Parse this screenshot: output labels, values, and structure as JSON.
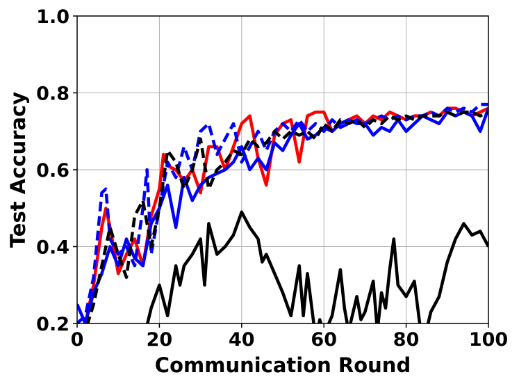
{
  "chart_data": {
    "type": "line",
    "xlabel": "Communication Round",
    "ylabel": "Test Accuracy",
    "xlim": [
      0,
      100
    ],
    "ylim": [
      0.2,
      1.0
    ],
    "x_ticks": [
      "0",
      "20",
      "40",
      "60",
      "80",
      "100"
    ],
    "y_ticks": [
      "0.2",
      "0.4",
      "0.6",
      "0.8",
      "1.0"
    ],
    "grid": true,
    "legend": "none",
    "series": [
      {
        "color": "#ff0000",
        "linestyle": "solid",
        "x": [
          0,
          2,
          4,
          6,
          7,
          8,
          10,
          12,
          14,
          16,
          18,
          20,
          21,
          22,
          24,
          26,
          28,
          30,
          32,
          34,
          36,
          38,
          40,
          42,
          44,
          46,
          48,
          50,
          52,
          54,
          56,
          58,
          60,
          62,
          64,
          66,
          68,
          70,
          72,
          74,
          76,
          78,
          80,
          82,
          84,
          86,
          88,
          90,
          92,
          94,
          96,
          98,
          100
        ],
        "y": [
          0.19,
          0.2,
          0.3,
          0.45,
          0.5,
          0.45,
          0.33,
          0.38,
          0.42,
          0.35,
          0.48,
          0.55,
          0.64,
          0.61,
          0.6,
          0.57,
          0.6,
          0.54,
          0.66,
          0.66,
          0.6,
          0.66,
          0.72,
          0.74,
          0.63,
          0.56,
          0.69,
          0.72,
          0.73,
          0.62,
          0.74,
          0.75,
          0.75,
          0.7,
          0.72,
          0.73,
          0.74,
          0.72,
          0.74,
          0.73,
          0.75,
          0.74,
          0.73,
          0.74,
          0.74,
          0.75,
          0.74,
          0.76,
          0.76,
          0.75,
          0.74,
          0.75,
          0.76
        ]
      },
      {
        "color": "#0000ff",
        "linestyle": "solid",
        "x": [
          0,
          2,
          4,
          6,
          8,
          10,
          12,
          14,
          16,
          18,
          20,
          22,
          24,
          26,
          28,
          30,
          32,
          34,
          36,
          38,
          40,
          42,
          44,
          46,
          48,
          50,
          52,
          54,
          56,
          58,
          60,
          62,
          64,
          66,
          68,
          70,
          72,
          74,
          76,
          78,
          80,
          82,
          84,
          86,
          88,
          90,
          92,
          94,
          96,
          98,
          100
        ],
        "y": [
          0.25,
          0.2,
          0.28,
          0.33,
          0.4,
          0.35,
          0.42,
          0.37,
          0.35,
          0.46,
          0.5,
          0.56,
          0.45,
          0.58,
          0.52,
          0.56,
          0.58,
          0.59,
          0.6,
          0.62,
          0.66,
          0.6,
          0.63,
          0.6,
          0.67,
          0.65,
          0.69,
          0.72,
          0.68,
          0.69,
          0.71,
          0.7,
          0.72,
          0.73,
          0.72,
          0.72,
          0.69,
          0.71,
          0.7,
          0.73,
          0.7,
          0.72,
          0.74,
          0.73,
          0.72,
          0.75,
          0.74,
          0.75,
          0.74,
          0.7,
          0.76
        ]
      },
      {
        "color": "#0000ff",
        "linestyle": "dashed",
        "x": [
          0,
          2,
          4,
          6,
          7,
          8,
          10,
          12,
          14,
          16,
          17,
          18,
          20,
          22,
          24,
          26,
          28,
          30,
          32,
          34,
          36,
          38,
          40,
          42,
          44,
          46,
          48,
          50,
          52,
          54,
          56,
          58,
          60,
          62,
          64,
          66,
          68,
          70,
          72,
          74,
          76,
          78,
          80,
          82,
          84,
          86,
          88,
          90,
          92,
          94,
          96,
          98,
          100
        ],
        "y": [
          0.2,
          0.22,
          0.32,
          0.54,
          0.55,
          0.42,
          0.38,
          0.4,
          0.35,
          0.5,
          0.6,
          0.38,
          0.5,
          0.62,
          0.58,
          0.66,
          0.6,
          0.7,
          0.72,
          0.64,
          0.68,
          0.72,
          0.62,
          0.66,
          0.7,
          0.65,
          0.7,
          0.72,
          0.7,
          0.73,
          0.7,
          0.72,
          0.7,
          0.73,
          0.71,
          0.72,
          0.73,
          0.72,
          0.73,
          0.74,
          0.73,
          0.74,
          0.73,
          0.74,
          0.74,
          0.75,
          0.74,
          0.76,
          0.75,
          0.76,
          0.75,
          0.77,
          0.77
        ]
      },
      {
        "color": "#000000",
        "linestyle": "dashed",
        "x": [
          0,
          2,
          4,
          6,
          8,
          10,
          12,
          14,
          16,
          18,
          20,
          22,
          24,
          26,
          28,
          30,
          32,
          34,
          36,
          38,
          40,
          42,
          44,
          46,
          48,
          50,
          52,
          54,
          56,
          58,
          60,
          62,
          64,
          66,
          68,
          70,
          72,
          74,
          76,
          78,
          80,
          82,
          84,
          86,
          88,
          90,
          92,
          94,
          96,
          98,
          100
        ],
        "y": [
          0.19,
          0.18,
          0.25,
          0.35,
          0.45,
          0.38,
          0.32,
          0.48,
          0.52,
          0.4,
          0.5,
          0.65,
          0.62,
          0.55,
          0.6,
          0.68,
          0.55,
          0.6,
          0.62,
          0.65,
          0.64,
          0.68,
          0.66,
          0.67,
          0.7,
          0.68,
          0.7,
          0.69,
          0.7,
          0.68,
          0.72,
          0.7,
          0.73,
          0.72,
          0.73,
          0.71,
          0.73,
          0.72,
          0.74,
          0.73,
          0.74,
          0.73,
          0.74,
          0.74,
          0.74,
          0.75,
          0.74,
          0.75,
          0.75,
          0.74,
          0.75
        ]
      },
      {
        "color": "#000000",
        "linestyle": "solid",
        "x": [
          16,
          18,
          20,
          22,
          24,
          25,
          26,
          28,
          30,
          31,
          32,
          34,
          36,
          38,
          40,
          42,
          44,
          45,
          46,
          48,
          50,
          52,
          54,
          55,
          56,
          58,
          59,
          60,
          62,
          64,
          65,
          66,
          68,
          69,
          70,
          72,
          73,
          74,
          75,
          76,
          77,
          78,
          80,
          82,
          84,
          86,
          88,
          90,
          92,
          94,
          96,
          98,
          100
        ],
        "y": [
          0.15,
          0.24,
          0.3,
          0.22,
          0.35,
          0.3,
          0.35,
          0.38,
          0.42,
          0.3,
          0.46,
          0.38,
          0.4,
          0.43,
          0.49,
          0.45,
          0.42,
          0.36,
          0.38,
          0.33,
          0.28,
          0.22,
          0.35,
          0.22,
          0.33,
          0.16,
          0.21,
          0.17,
          0.22,
          0.34,
          0.24,
          0.18,
          0.27,
          0.21,
          0.23,
          0.31,
          0.18,
          0.28,
          0.24,
          0.34,
          0.42,
          0.3,
          0.27,
          0.31,
          0.14,
          0.23,
          0.27,
          0.36,
          0.42,
          0.46,
          0.43,
          0.44,
          0.4
        ]
      }
    ]
  }
}
